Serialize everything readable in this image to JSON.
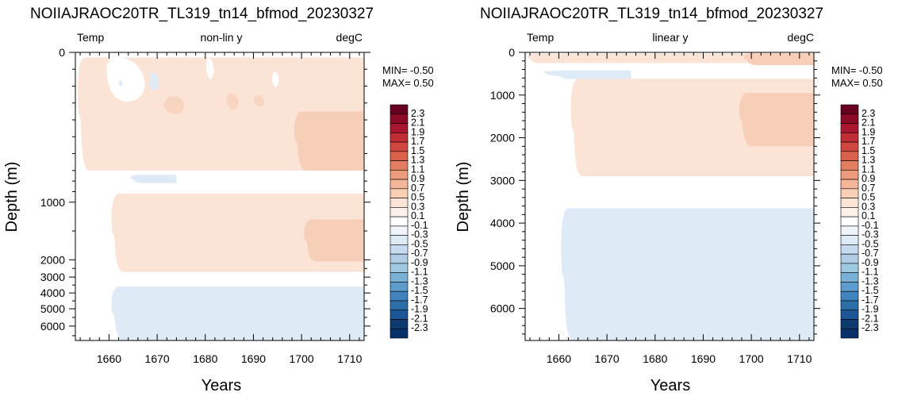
{
  "colors": {
    "blue_1": "#deebf7",
    "red_1": "#fbe3d6",
    "red_2": "#f7cfb8",
    "frame": "#000000"
  },
  "colorbar": {
    "labels": [
      "2.3",
      "2.1",
      "1.9",
      "1.7",
      "1.5",
      "1.3",
      "1.1",
      "0.9",
      "0.7",
      "0.5",
      "0.3",
      "0.1",
      "-0.1",
      "-0.3",
      "-0.5",
      "-0.7",
      "-0.9",
      "-1.1",
      "-1.3",
      "-1.5",
      "-1.7",
      "-1.9",
      "-2.1",
      "-2.3"
    ],
    "colors": [
      "#67001f",
      "#8b0a26",
      "#a9162d",
      "#c12d35",
      "#d0473f",
      "#d9614c",
      "#e27d62",
      "#ec9a7c",
      "#f4b699",
      "#f9cfb5",
      "#fbe3d6",
      "#fdf1ea",
      "#ffffff",
      "#eef4fa",
      "#deebf7",
      "#c6dbef",
      "#b0cde5",
      "#9ecae1",
      "#7bb0d6",
      "#5d9ccc",
      "#3f84be",
      "#2b6ea8",
      "#1b5595",
      "#0d3b6e",
      "#08306b"
    ]
  },
  "chart_data": [
    {
      "type": "heatmap",
      "title": "NOIIAJRAOC20TR_TL319_tn14_bfmod_20230327",
      "left_string": "Temp",
      "center_string": "non-lin y",
      "right_string": "degC",
      "xlabel": "Years",
      "ylabel": "Depth (m)",
      "xlim": [
        1653,
        1713
      ],
      "ylim": [
        0,
        6750
      ],
      "y_scale": "non-linear",
      "xticks": [
        1660,
        1670,
        1680,
        1690,
        1700,
        1710
      ],
      "yticks": [
        0,
        1000,
        2000,
        3000,
        4000,
        5000,
        6000
      ],
      "min_label": "MIN= -0.50",
      "max_label": "MAX=  0.50",
      "anomaly_regions": [
        {
          "level": "+0.3",
          "x": [
            1654,
            1713
          ],
          "depth": [
            30,
            700
          ]
        },
        {
          "level": "+0.5",
          "x": [
            1699,
            1713
          ],
          "depth": [
            350,
            700
          ]
        },
        {
          "level": "-0.3",
          "x": [
            1665,
            1674
          ],
          "depth": [
            740,
            820
          ]
        },
        {
          "level": "+0.3",
          "x": [
            1661,
            1713
          ],
          "depth": [
            920,
            2700
          ]
        },
        {
          "level": "+0.5",
          "x": [
            1701,
            1713
          ],
          "depth": [
            1300,
            2100
          ]
        },
        {
          "level": "-0.3",
          "x": [
            1661,
            1713
          ],
          "depth": [
            3600,
            6750
          ]
        }
      ]
    },
    {
      "type": "heatmap",
      "title": "NOIIAJRAOC20TR_TL319_tn14_bfmod_20230327",
      "left_string": "Temp",
      "center_string": "linear y",
      "right_string": "degC",
      "xlabel": "Years",
      "ylabel": "Depth (m)",
      "xlim": [
        1653,
        1713
      ],
      "ylim": [
        0,
        6750
      ],
      "y_scale": "linear",
      "xticks": [
        1660,
        1670,
        1680,
        1690,
        1700,
        1710
      ],
      "yticks": [
        0,
        1000,
        2000,
        3000,
        4000,
        5000,
        6000
      ],
      "min_label": "MIN= -0.50",
      "max_label": "MAX=  0.50",
      "anomaly_regions": [
        {
          "level": "+0.3",
          "x": [
            1654,
            1713
          ],
          "depth": [
            30,
            250
          ]
        },
        {
          "level": "+0.5",
          "x": [
            1699,
            1713
          ],
          "depth": [
            20,
            300
          ]
        },
        {
          "level": "-0.3",
          "x": [
            1660,
            1675
          ],
          "depth": [
            420,
            620
          ]
        },
        {
          "level": "+0.3",
          "x": [
            1663,
            1713
          ],
          "depth": [
            620,
            2900
          ]
        },
        {
          "level": "+0.5",
          "x": [
            1698,
            1713
          ],
          "depth": [
            950,
            2200
          ]
        },
        {
          "level": "-0.3",
          "x": [
            1661,
            1713
          ],
          "depth": [
            3650,
            6750
          ]
        }
      ]
    }
  ]
}
